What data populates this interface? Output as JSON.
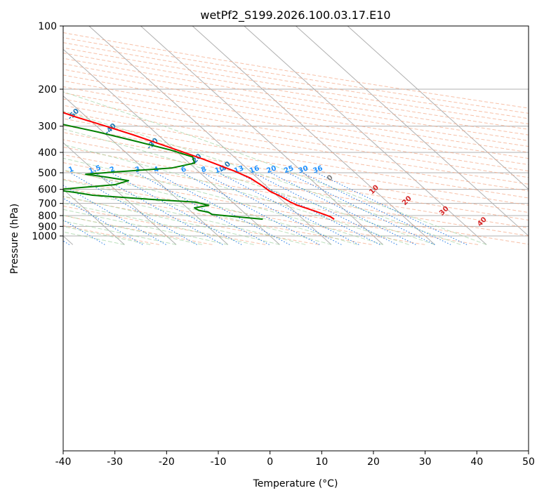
{
  "chart_data": {
    "type": "line",
    "subtype": "skew-t log-p sounding",
    "title": "wetPf2_S199.2026.100.03.17.E10",
    "xlabel": "Temperature (°C)",
    "ylabel": "Pressure (hPa)",
    "xlim": [
      -40,
      50
    ],
    "ylim": [
      1050,
      100
    ],
    "skew_deg_per_decade": 45,
    "x_ticks": [
      -40,
      -30,
      -20,
      -10,
      0,
      10,
      20,
      30,
      40,
      50
    ],
    "y_ticks": [
      100,
      200,
      300,
      400,
      500,
      600,
      700,
      800,
      900,
      1000
    ],
    "series": [
      {
        "name": "Temperature",
        "color": "#ff0000",
        "points": [
          {
            "p": 832,
            "t": 16.0
          },
          {
            "p": 810,
            "t": 15.8
          },
          {
            "p": 760,
            "t": 14.0
          },
          {
            "p": 712,
            "t": 11.8
          },
          {
            "p": 690,
            "t": 11.2
          },
          {
            "p": 650,
            "t": 10.6
          },
          {
            "p": 610,
            "t": 9.5
          },
          {
            "p": 580,
            "t": 9.3
          },
          {
            "p": 530,
            "t": 8.6
          },
          {
            "p": 490,
            "t": 7.0
          },
          {
            "p": 430,
            "t": 3.5
          },
          {
            "p": 380,
            "t": -0.3
          },
          {
            "p": 330,
            "t": -4.8
          },
          {
            "p": 300,
            "t": -8.2
          },
          {
            "p": 270,
            "t": -12.2
          },
          {
            "p": 245,
            "t": -15.2
          },
          {
            "p": 220,
            "t": -18.6
          },
          {
            "p": 200,
            "t": -21.8
          },
          {
            "p": 180,
            "t": -27.0
          },
          {
            "p": 165,
            "t": -32.3
          },
          {
            "p": 150,
            "t": -37.0
          },
          {
            "p": 135,
            "t": -43.0
          },
          {
            "p": 120,
            "t": -50.0
          },
          {
            "p": 110,
            "t": -55.0
          },
          {
            "p": 100,
            "t": -60.0
          }
        ]
      },
      {
        "name": "Dewpoint",
        "color": "#008000",
        "points": [
          {
            "p": 832,
            "t": 2.2
          },
          {
            "p": 790,
            "t": -6.6
          },
          {
            "p": 770,
            "t": -6.8
          },
          {
            "p": 755,
            "t": -8.3
          },
          {
            "p": 735,
            "t": -8.6
          },
          {
            "p": 715,
            "t": -5.3
          },
          {
            "p": 690,
            "t": -7.2
          },
          {
            "p": 670,
            "t": -15.0
          },
          {
            "p": 640,
            "t": -25.6
          },
          {
            "p": 620,
            "t": -28.5
          },
          {
            "p": 603,
            "t": -31.5
          },
          {
            "p": 590,
            "t": -27.0
          },
          {
            "p": 570,
            "t": -19.0
          },
          {
            "p": 545,
            "t": -15.5
          },
          {
            "p": 525,
            "t": -19.0
          },
          {
            "p": 508,
            "t": -22.4
          },
          {
            "p": 495,
            "t": -16.0
          },
          {
            "p": 475,
            "t": -4.5
          },
          {
            "p": 450,
            "t": 1.0
          },
          {
            "p": 420,
            "t": 2.0
          },
          {
            "p": 390,
            "t": -0.8
          },
          {
            "p": 355,
            "t": -5.5
          },
          {
            "p": 320,
            "t": -11.0
          },
          {
            "p": 290,
            "t": -17.0
          },
          {
            "p": 265,
            "t": -20.5
          },
          {
            "p": 250,
            "t": -23.2
          },
          {
            "p": 230,
            "t": -26.5
          },
          {
            "p": 210,
            "t": -31.0
          },
          {
            "p": 190,
            "t": -37.2
          },
          {
            "p": 175,
            "t": -42.3
          },
          {
            "p": 160,
            "t": -49.0
          },
          {
            "p": 150,
            "t": -51.5
          },
          {
            "p": 140,
            "t": -53.0
          },
          {
            "p": 125,
            "t": -56.5
          },
          {
            "p": 115,
            "t": -57.5
          },
          {
            "p": 100,
            "t": -60.5
          }
        ]
      }
    ],
    "dry_adiabat_labels": [
      {
        "text": "-100",
        "color": "#1f77b4"
      },
      {
        "text": "-90",
        "color": "#1f77b4"
      },
      {
        "text": "-80",
        "color": "#1f77b4"
      },
      {
        "text": "-70",
        "color": "#1f77b4"
      },
      {
        "text": "-60",
        "color": "#1f77b4"
      },
      {
        "text": "-50",
        "color": "#1f77b4"
      },
      {
        "text": "-40",
        "color": "#1f77b4"
      },
      {
        "text": "-30",
        "color": "#1f77b4"
      },
      {
        "text": "-20",
        "color": "#1f77b4"
      },
      {
        "text": "-10",
        "color": "#1f77b4"
      },
      {
        "text": "0",
        "color": "#7f7f7f"
      },
      {
        "text": "10",
        "color": "#d62728"
      },
      {
        "text": "20",
        "color": "#d62728"
      },
      {
        "text": "30",
        "color": "#d62728"
      },
      {
        "text": "40",
        "color": "#d62728"
      }
    ],
    "mixing_ratio_labels": [
      "0.1",
      "0.2",
      "0.4",
      "0.6",
      "1",
      "1.5",
      "2",
      "3",
      "4",
      "6",
      "8",
      "10",
      "13",
      "16",
      "20",
      "25",
      "30",
      "36"
    ],
    "mixing_ratio_values": [
      0.1,
      0.2,
      0.4,
      0.6,
      1,
      1.5,
      2,
      3,
      4,
      6,
      8,
      10,
      13,
      16,
      20,
      25,
      30,
      36
    ],
    "colors": {
      "temperature": "#ff0000",
      "dewpoint": "#008000",
      "isotherm": "#b0b0b0",
      "dry_adiabat": "#f4a582",
      "moist_adiabat": "#9fd39f",
      "mixing_ratio": "#1f77e4",
      "label_blue": "#1f77b4",
      "label_red": "#d62728",
      "label_gray": "#7f7f7f",
      "mixing_label": "#1e90ff"
    }
  }
}
